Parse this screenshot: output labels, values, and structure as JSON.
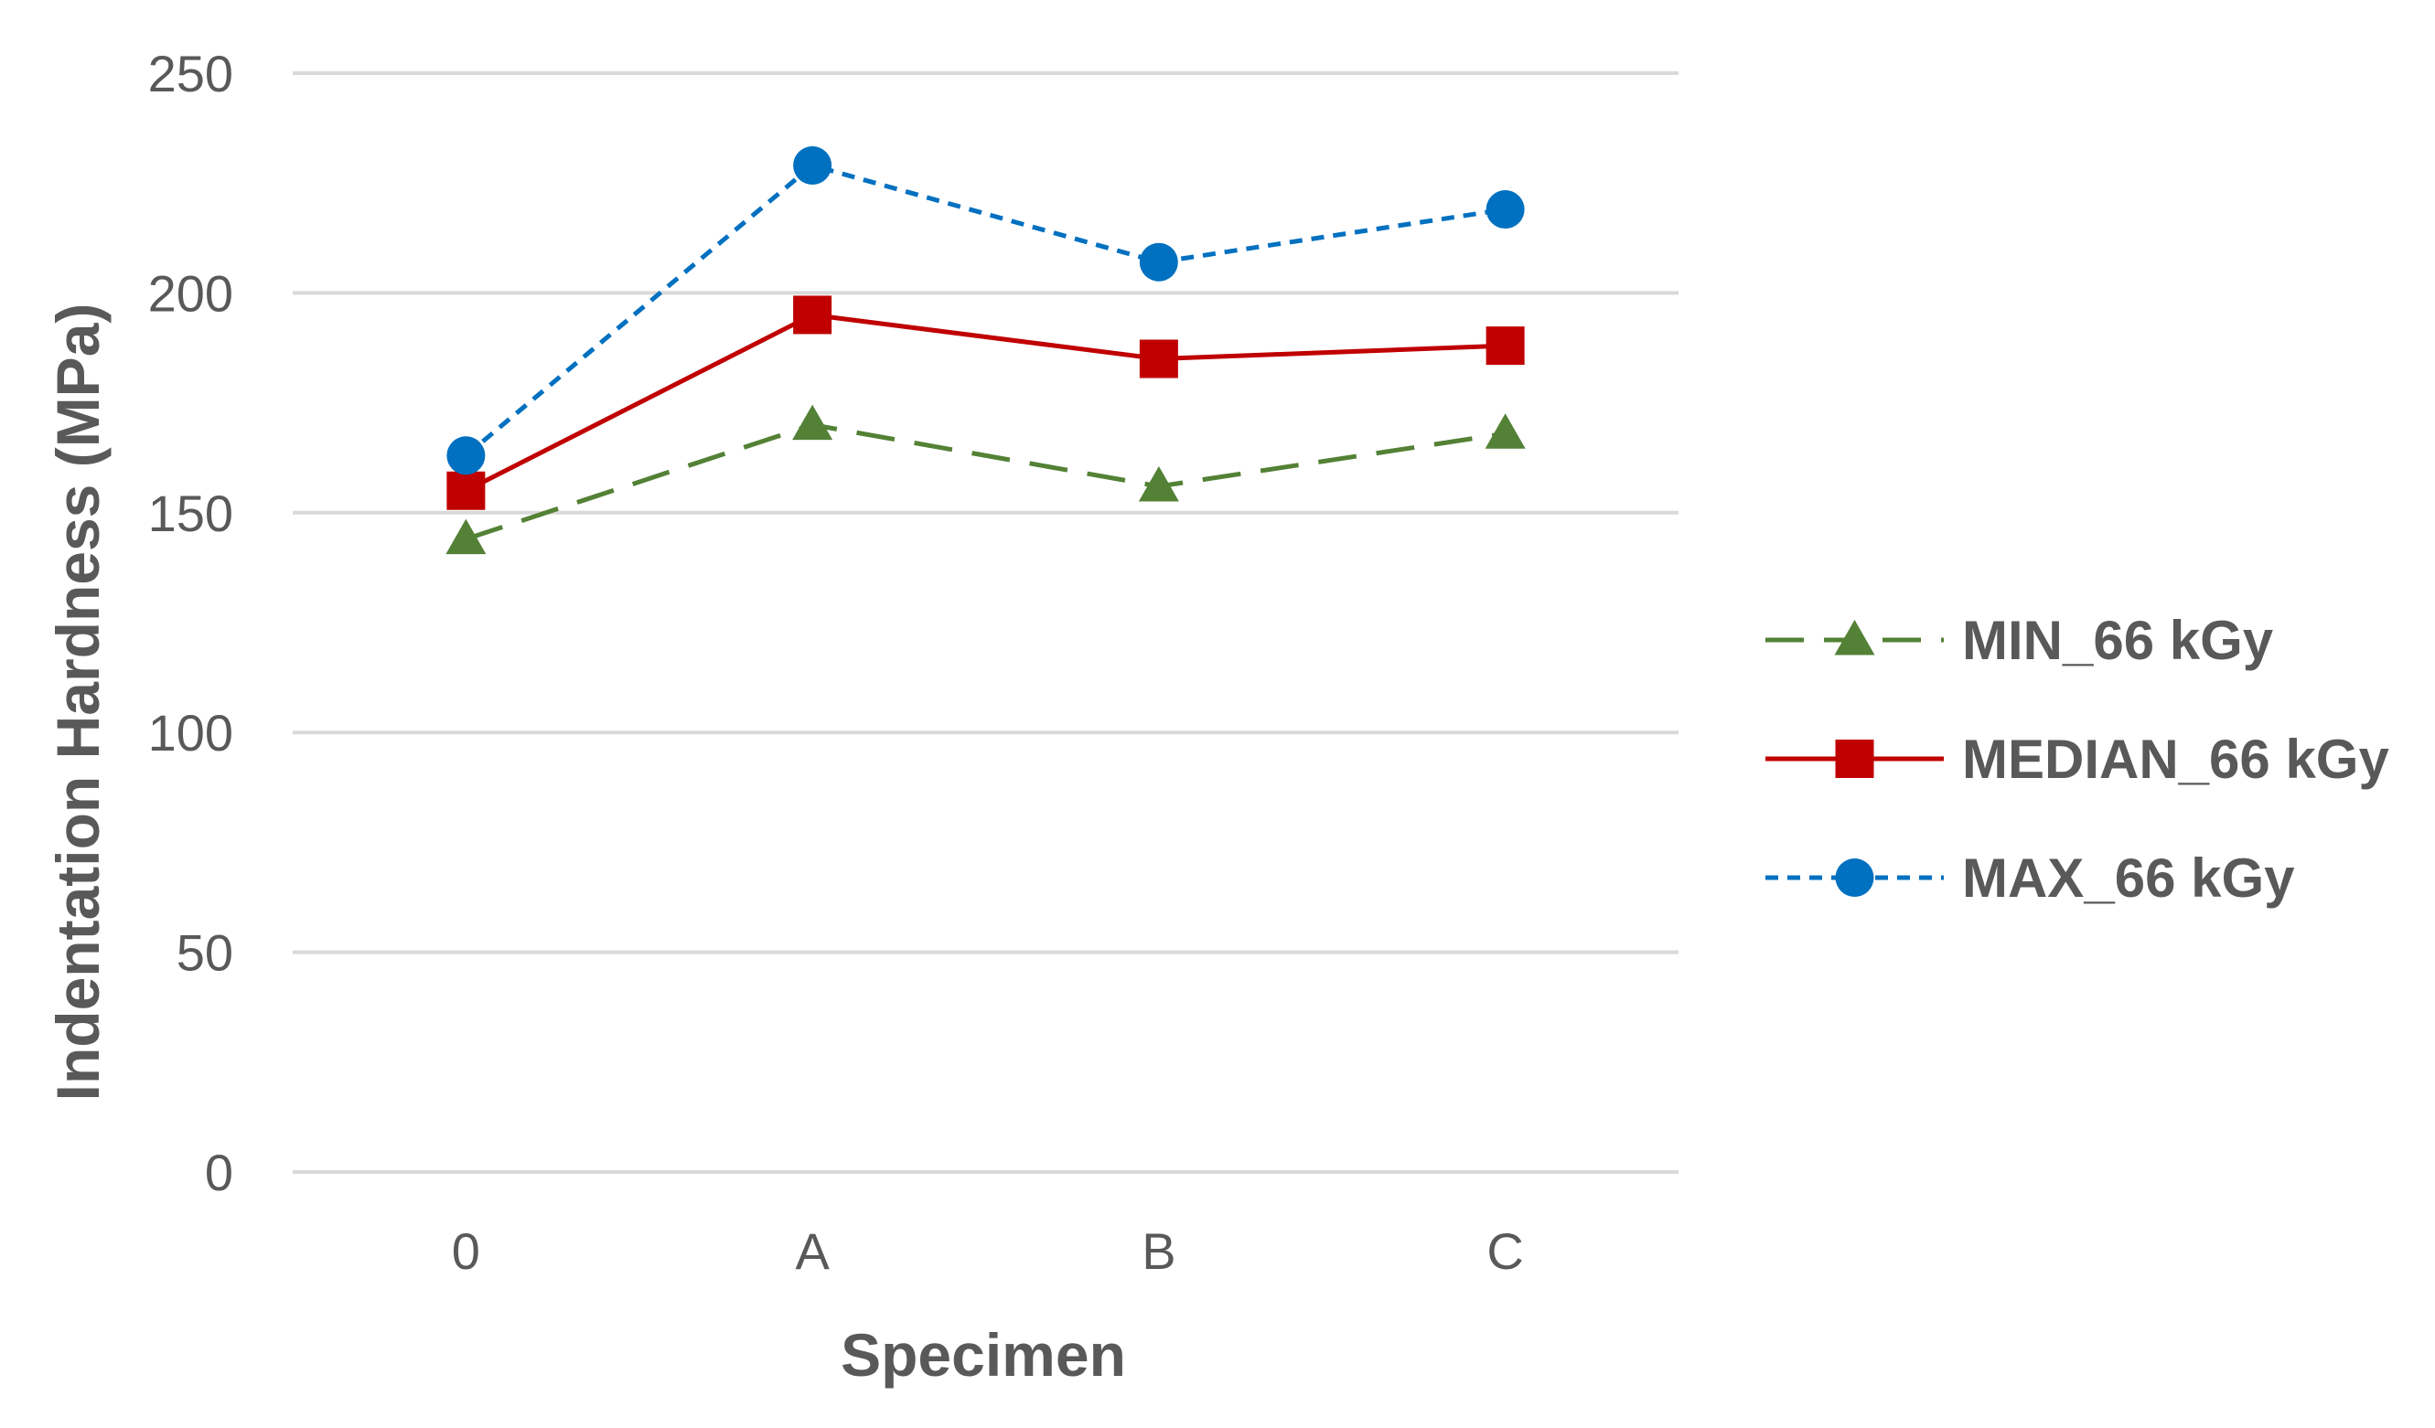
{
  "chart_data": {
    "type": "line",
    "title": "",
    "xlabel": "Specimen",
    "ylabel": "Indentation Hardness (MPa)",
    "categories": [
      "0",
      "A",
      "B",
      "C"
    ],
    "ylim": [
      0,
      250
    ],
    "yticks": [
      0,
      50,
      100,
      150,
      200,
      250
    ],
    "grid": true,
    "legend_position": "right",
    "series": [
      {
        "name": "MIN_66 kGy",
        "values": [
          144,
          170,
          156,
          168
        ],
        "color": "#538135",
        "marker": "triangle",
        "line_style": "long-dash"
      },
      {
        "name": "MEDIAN_66 kGy",
        "values": [
          155,
          195,
          185,
          188
        ],
        "color": "#C00000",
        "marker": "square",
        "line_style": "solid"
      },
      {
        "name": "MAX_66 kGy",
        "values": [
          163,
          229,
          207,
          219
        ],
        "color": "#0070C0",
        "marker": "circle",
        "line_style": "dotted"
      }
    ],
    "gridline_color": "#D9D9D9"
  }
}
